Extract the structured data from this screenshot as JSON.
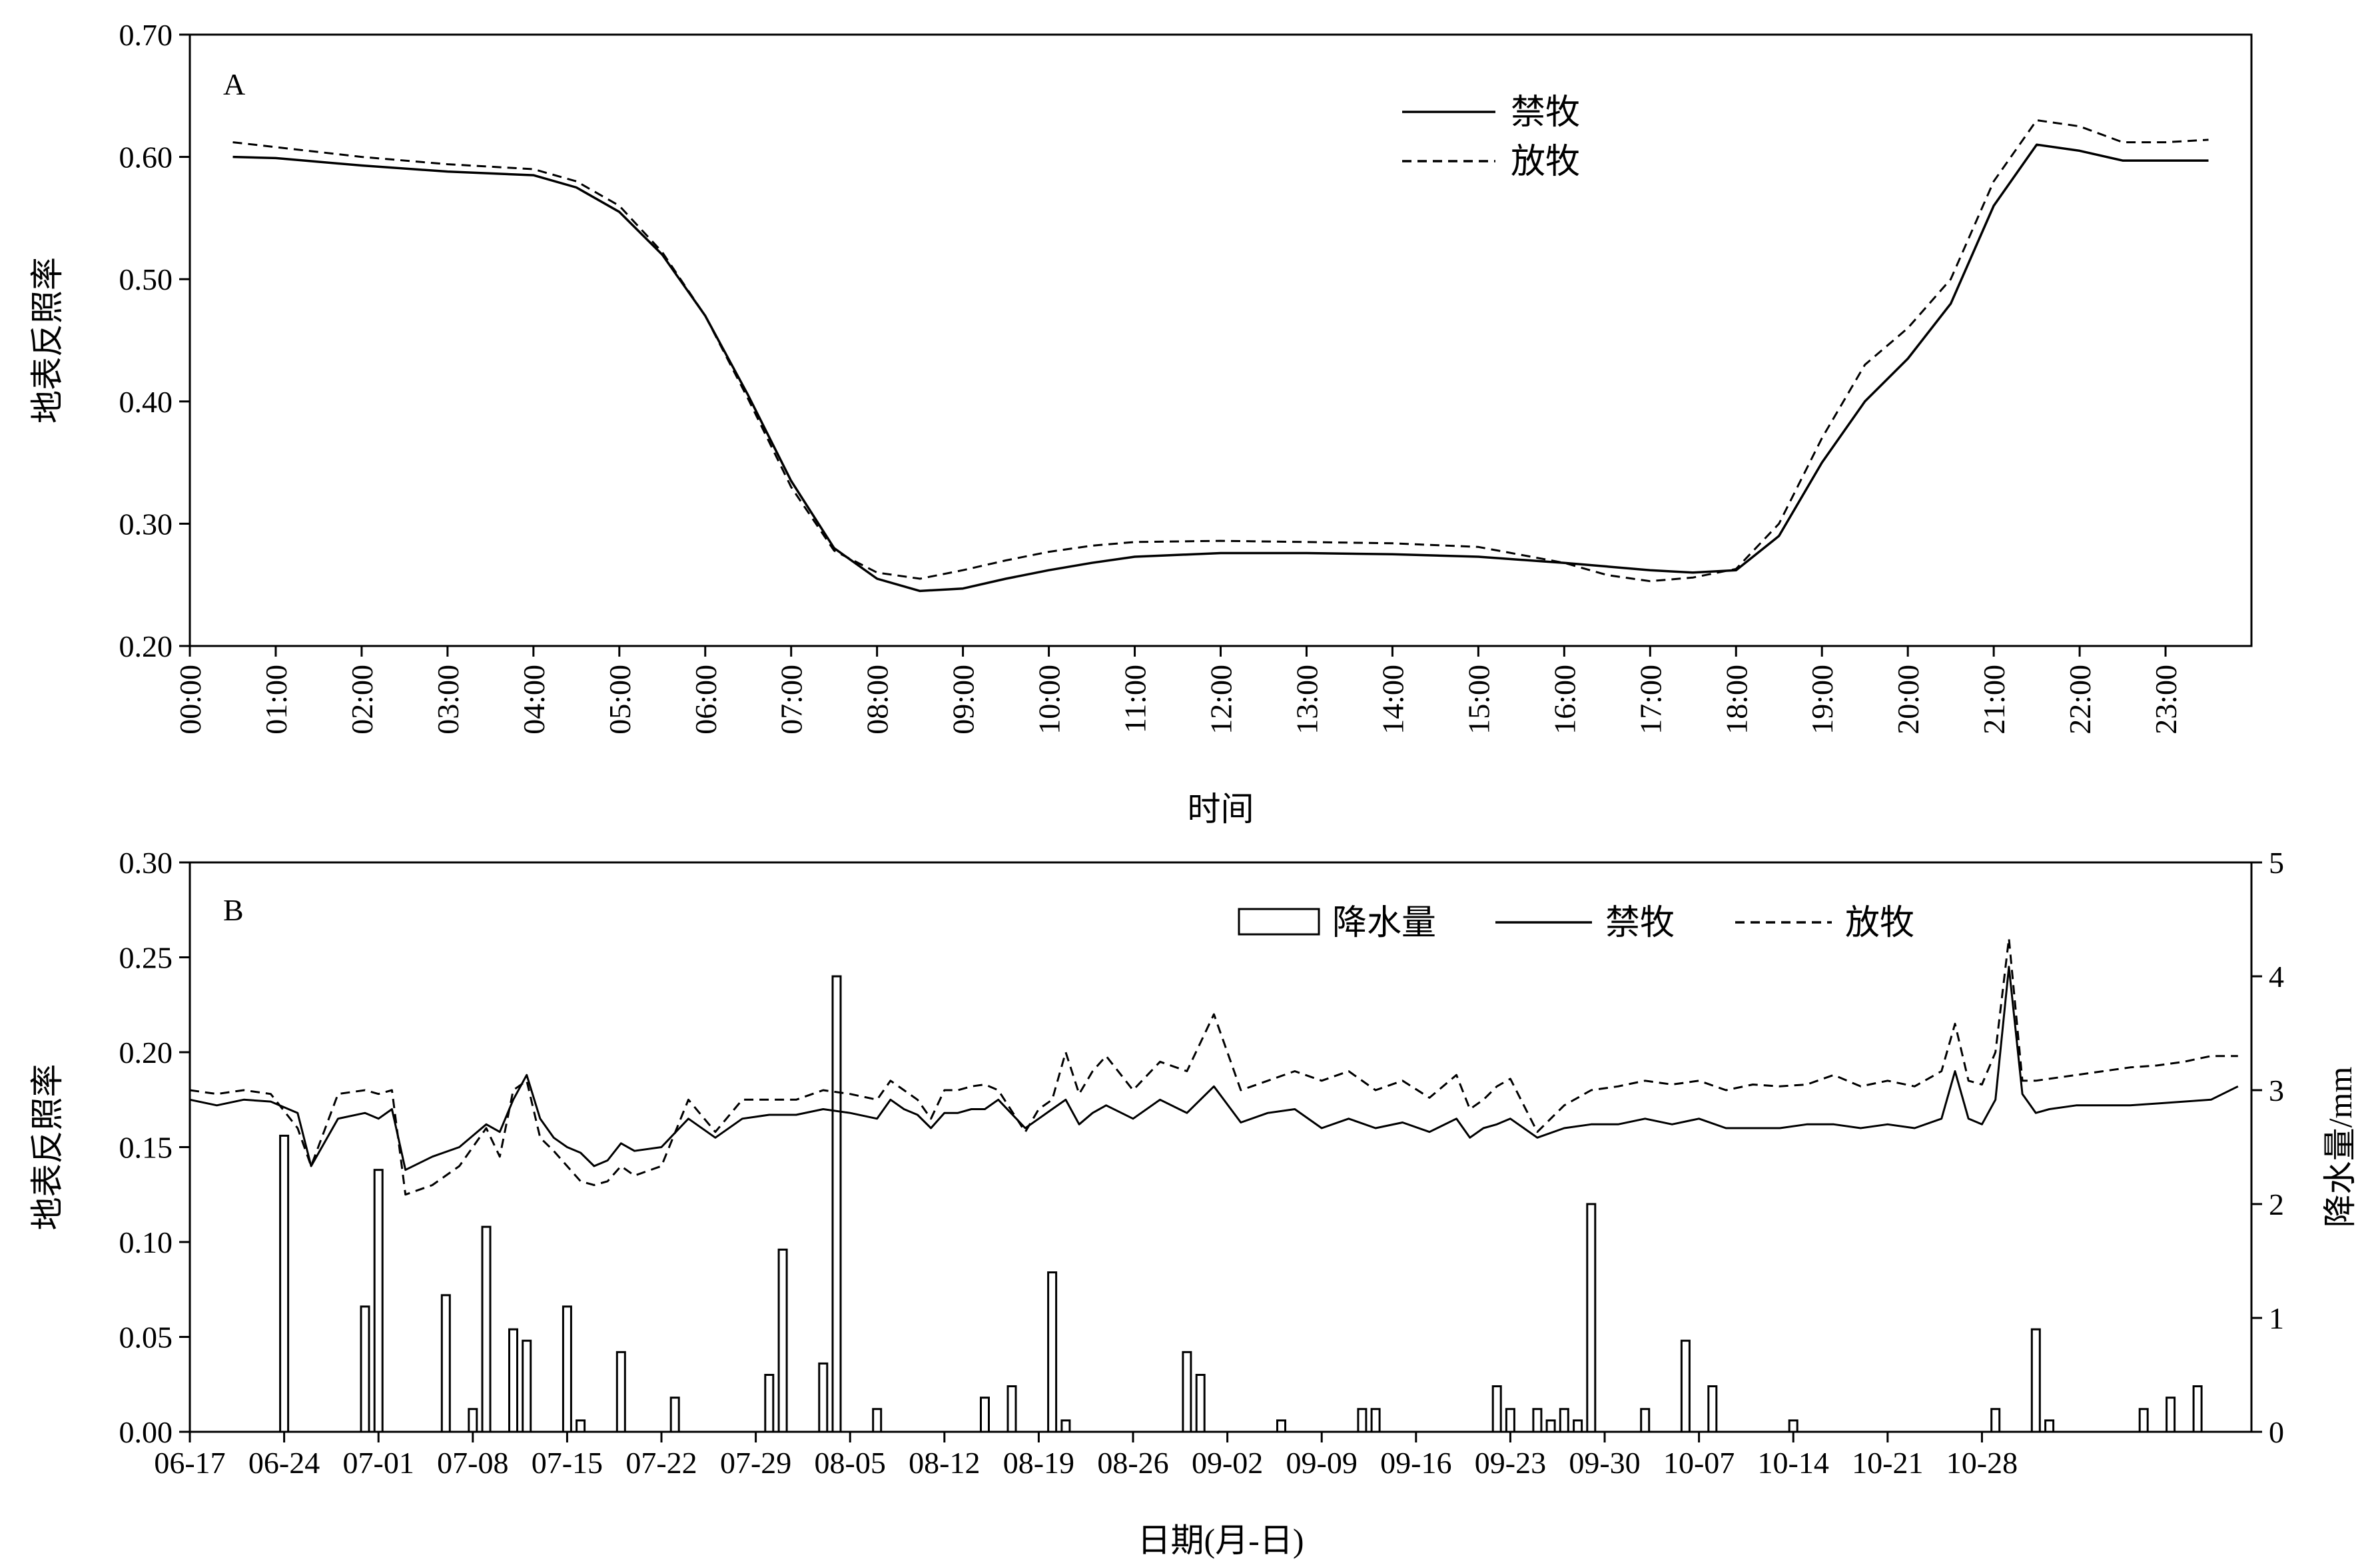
{
  "chart_data": [
    {
      "type": "line",
      "panel_label": "A",
      "xlabel": "时间",
      "ylabel": "地表反照率",
      "ylim": [
        0.2,
        0.7
      ],
      "yticks": [
        "0.20",
        "0.30",
        "0.40",
        "0.50",
        "0.60",
        "0.70"
      ],
      "xticks": [
        "00:00",
        "01:00",
        "02:00",
        "03:00",
        "04:00",
        "05:00",
        "06:00",
        "07:00",
        "08:00",
        "09:00",
        "10:00",
        "11:00",
        "12:00",
        "13:00",
        "14:00",
        "15:00",
        "16:00",
        "17:00",
        "18:00",
        "19:00",
        "20:00",
        "21:00",
        "22:00",
        "23:00"
      ],
      "legend_position": "top-right",
      "series": [
        {
          "name": "禁牧",
          "style": "solid",
          "x": [
            0.5,
            1.0,
            2.0,
            3.0,
            4.0,
            4.5,
            5.0,
            5.5,
            6.0,
            6.5,
            7.0,
            7.5,
            8.0,
            8.5,
            9.0,
            9.5,
            10.0,
            10.5,
            11.0,
            12.0,
            13.0,
            14.0,
            15.0,
            16.0,
            17.0,
            17.5,
            18.0,
            18.5,
            19.0,
            19.5,
            20.0,
            20.5,
            21.0,
            21.5,
            22.0,
            22.5,
            23.0,
            23.5
          ],
          "y": [
            0.6,
            0.599,
            0.593,
            0.588,
            0.585,
            0.575,
            0.555,
            0.52,
            0.47,
            0.405,
            0.335,
            0.28,
            0.255,
            0.245,
            0.247,
            0.255,
            0.262,
            0.268,
            0.273,
            0.276,
            0.276,
            0.275,
            0.273,
            0.268,
            0.262,
            0.26,
            0.262,
            0.29,
            0.35,
            0.4,
            0.435,
            0.48,
            0.56,
            0.61,
            0.605,
            0.597,
            0.597,
            0.597
          ]
        },
        {
          "name": "放牧",
          "style": "dashed",
          "x": [
            0.5,
            1.0,
            2.0,
            3.0,
            4.0,
            4.5,
            5.0,
            5.5,
            6.0,
            6.5,
            7.0,
            7.5,
            8.0,
            8.5,
            9.0,
            9.5,
            10.0,
            10.5,
            11.0,
            12.0,
            13.0,
            14.0,
            15.0,
            16.0,
            16.5,
            17.0,
            17.5,
            18.0,
            18.5,
            19.0,
            19.5,
            20.0,
            20.5,
            21.0,
            21.5,
            22.0,
            22.5,
            23.0,
            23.5
          ],
          "y": [
            0.612,
            0.608,
            0.6,
            0.594,
            0.59,
            0.58,
            0.56,
            0.522,
            0.47,
            0.402,
            0.33,
            0.278,
            0.26,
            0.255,
            0.262,
            0.27,
            0.277,
            0.282,
            0.285,
            0.286,
            0.285,
            0.284,
            0.281,
            0.268,
            0.258,
            0.253,
            0.256,
            0.263,
            0.3,
            0.37,
            0.43,
            0.46,
            0.5,
            0.58,
            0.63,
            0.625,
            0.612,
            0.612,
            0.614
          ]
        }
      ]
    },
    {
      "type": "bar+line",
      "panel_label": "B",
      "xlabel": "日期(月-日)",
      "ylabel": "地表反照率",
      "ylabel_right": "降水量/mm",
      "ylim": [
        0,
        0.3
      ],
      "ylim_right": [
        0,
        5
      ],
      "yticks": [
        "0.00",
        "0.05",
        "0.10",
        "0.15",
        "0.20",
        "0.25",
        "0.30"
      ],
      "yticks_right": [
        "0",
        "1",
        "2",
        "3",
        "4",
        "5"
      ],
      "xticks": [
        "06-17",
        "06-24",
        "07-01",
        "07-08",
        "07-15",
        "07-22",
        "07-29",
        "08-05",
        "08-12",
        "08-19",
        "08-26",
        "09-02",
        "09-09",
        "09-16",
        "09-23",
        "09-30",
        "10-07",
        "10-14",
        "10-21",
        "10-28"
      ],
      "legend_position": "top-right",
      "legend": [
        "降水量",
        "禁牧",
        "放牧"
      ],
      "precipitation": {
        "name": "降水量",
        "day": [
          7,
          13,
          14,
          19,
          21,
          22,
          24,
          25,
          28,
          29,
          32,
          36,
          43,
          44,
          47,
          48,
          51,
          59,
          61,
          64,
          65,
          74,
          75,
          81,
          87,
          88,
          97,
          98,
          100,
          101,
          102,
          103,
          104,
          108,
          111,
          113,
          119,
          134,
          137,
          138,
          145,
          147,
          149
        ],
        "value": [
          2.6,
          1.1,
          2.3,
          1.2,
          0.2,
          1.8,
          0.9,
          0.8,
          1.1,
          0.1,
          0.7,
          0.3,
          0.5,
          1.6,
          0.6,
          4.0,
          0.2,
          0.3,
          0.4,
          1.4,
          0.1,
          0.7,
          0.5,
          0.1,
          0.2,
          0.2,
          0.4,
          0.2,
          0.2,
          0.1,
          0.2,
          0.1,
          2.0,
          0.2,
          0.8,
          0.4,
          0.1,
          0.2,
          0.9,
          0.1,
          0.2,
          0.3,
          0.4
        ]
      },
      "series": [
        {
          "name": "禁牧",
          "style": "solid",
          "x": [
            0,
            2,
            4,
            6,
            8,
            9,
            11,
            13,
            14,
            15,
            16,
            18,
            20,
            21,
            22,
            23,
            24,
            25,
            26,
            27,
            28,
            29,
            30,
            31,
            32,
            33,
            35,
            37,
            39,
            41,
            43,
            45,
            47,
            49,
            51,
            52,
            53,
            54,
            55,
            56,
            57,
            58,
            59,
            60,
            62,
            63,
            64,
            65,
            66,
            67,
            68,
            70,
            72,
            74,
            76,
            78,
            80,
            82,
            84,
            86,
            88,
            90,
            92,
            94,
            95,
            96,
            97,
            98,
            100,
            102,
            104,
            106,
            108,
            110,
            112,
            114,
            116,
            118,
            120,
            122,
            124,
            126,
            128,
            130,
            131,
            132,
            133,
            134,
            135,
            136,
            137,
            138,
            140,
            142,
            144,
            146,
            148,
            150,
            152
          ],
          "y": [
            0.175,
            0.172,
            0.175,
            0.174,
            0.168,
            0.14,
            0.165,
            0.168,
            0.165,
            0.17,
            0.138,
            0.145,
            0.15,
            0.156,
            0.162,
            0.158,
            0.175,
            0.188,
            0.165,
            0.155,
            0.15,
            0.147,
            0.14,
            0.143,
            0.152,
            0.148,
            0.15,
            0.165,
            0.155,
            0.165,
            0.167,
            0.167,
            0.17,
            0.168,
            0.165,
            0.175,
            0.17,
            0.167,
            0.16,
            0.168,
            0.168,
            0.17,
            0.17,
            0.175,
            0.16,
            0.165,
            0.17,
            0.175,
            0.162,
            0.168,
            0.172,
            0.165,
            0.175,
            0.168,
            0.182,
            0.163,
            0.168,
            0.17,
            0.16,
            0.165,
            0.16,
            0.163,
            0.158,
            0.165,
            0.155,
            0.16,
            0.162,
            0.165,
            0.155,
            0.16,
            0.162,
            0.162,
            0.165,
            0.162,
            0.165,
            0.16,
            0.16,
            0.16,
            0.162,
            0.162,
            0.16,
            0.162,
            0.16,
            0.165,
            0.19,
            0.165,
            0.162,
            0.175,
            0.245,
            0.178,
            0.168,
            0.17,
            0.172,
            0.172,
            0.172,
            0.173,
            0.174,
            0.175,
            0.182
          ]
        },
        {
          "name": "放牧",
          "style": "dashed",
          "x": [
            0,
            2,
            4,
            6,
            8,
            9,
            11,
            13,
            14,
            15,
            16,
            18,
            20,
            21,
            22,
            23,
            24,
            25,
            26,
            27,
            28,
            29,
            30,
            31,
            32,
            33,
            35,
            37,
            39,
            41,
            43,
            45,
            47,
            49,
            51,
            52,
            53,
            54,
            55,
            56,
            57,
            58,
            59,
            60,
            62,
            63,
            64,
            65,
            66,
            67,
            68,
            70,
            72,
            74,
            76,
            78,
            80,
            82,
            84,
            86,
            88,
            90,
            92,
            94,
            95,
            96,
            97,
            98,
            100,
            102,
            104,
            106,
            108,
            110,
            112,
            114,
            116,
            118,
            120,
            122,
            124,
            126,
            128,
            130,
            131,
            132,
            133,
            134,
            135,
            136,
            137,
            138,
            140,
            142,
            144,
            146,
            148,
            150,
            152
          ],
          "y": [
            0.18,
            0.178,
            0.18,
            0.178,
            0.16,
            0.14,
            0.178,
            0.18,
            0.178,
            0.18,
            0.125,
            0.13,
            0.14,
            0.15,
            0.16,
            0.145,
            0.18,
            0.185,
            0.155,
            0.148,
            0.14,
            0.132,
            0.13,
            0.132,
            0.14,
            0.135,
            0.14,
            0.175,
            0.158,
            0.175,
            0.175,
            0.175,
            0.18,
            0.178,
            0.175,
            0.185,
            0.18,
            0.175,
            0.165,
            0.18,
            0.18,
            0.182,
            0.183,
            0.18,
            0.158,
            0.17,
            0.175,
            0.2,
            0.178,
            0.19,
            0.198,
            0.18,
            0.195,
            0.19,
            0.22,
            0.18,
            0.185,
            0.19,
            0.185,
            0.19,
            0.18,
            0.185,
            0.176,
            0.188,
            0.17,
            0.175,
            0.182,
            0.186,
            0.158,
            0.172,
            0.18,
            0.182,
            0.185,
            0.183,
            0.185,
            0.18,
            0.183,
            0.182,
            0.183,
            0.188,
            0.182,
            0.185,
            0.182,
            0.19,
            0.215,
            0.185,
            0.183,
            0.2,
            0.26,
            0.185,
            0.185,
            0.186,
            0.188,
            0.19,
            0.192,
            0.193,
            0.195,
            0.198,
            0.198
          ]
        }
      ]
    }
  ]
}
